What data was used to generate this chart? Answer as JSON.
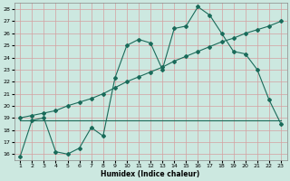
{
  "xlabel": "Humidex (Indice chaleur)",
  "bg_color": "#cce8e0",
  "grid_color": "#d4a0a0",
  "line_color": "#1a6b5a",
  "ylim": [
    15.5,
    28.5
  ],
  "xlim": [
    0.5,
    23.5
  ],
  "yticks": [
    16,
    17,
    18,
    19,
    20,
    21,
    22,
    23,
    24,
    25,
    26,
    27,
    28
  ],
  "xticks": [
    1,
    2,
    3,
    4,
    5,
    6,
    7,
    8,
    9,
    10,
    11,
    12,
    13,
    14,
    15,
    16,
    17,
    18,
    19,
    20,
    21,
    22,
    23
  ],
  "line1_x": [
    1,
    2,
    3,
    4,
    5,
    6,
    7,
    8,
    9,
    10,
    11,
    12,
    13,
    14,
    15,
    16,
    17,
    18,
    19,
    20,
    21,
    22,
    23
  ],
  "line1_y": [
    15.8,
    18.8,
    19.0,
    16.2,
    16.0,
    16.5,
    18.2,
    17.5,
    22.3,
    25.0,
    25.5,
    25.2,
    23.0,
    26.4,
    26.6,
    28.2,
    27.5,
    26.0,
    24.5,
    24.3,
    23.0,
    20.5,
    18.5
  ],
  "line2_x": [
    1,
    2,
    3,
    4,
    5,
    6,
    7,
    8,
    9,
    10,
    11,
    12,
    13,
    14,
    15,
    16,
    17,
    18,
    19,
    20,
    21,
    22,
    23
  ],
  "line2_y": [
    19.0,
    19.2,
    19.4,
    19.6,
    20.0,
    20.3,
    20.6,
    21.0,
    21.5,
    22.0,
    22.4,
    22.8,
    23.2,
    23.7,
    24.1,
    24.5,
    24.9,
    25.3,
    25.6,
    26.0,
    26.3,
    26.6,
    27.0
  ],
  "line3_x": [
    1,
    23
  ],
  "line3_y": [
    18.8,
    18.8
  ]
}
